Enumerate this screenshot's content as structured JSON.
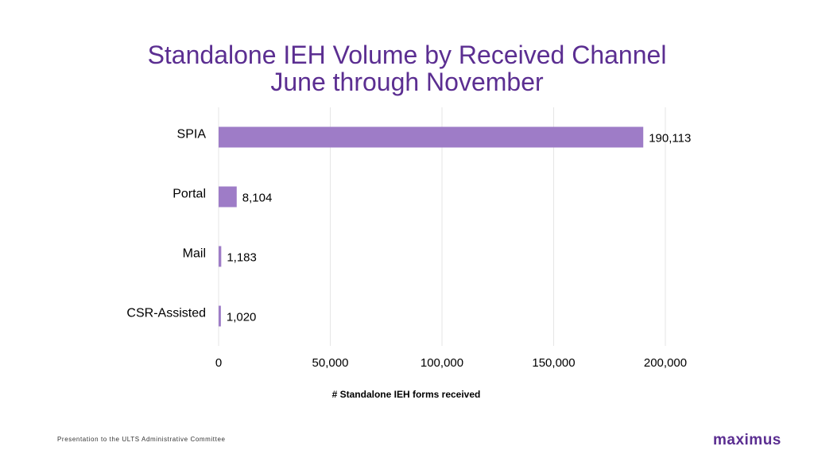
{
  "title": {
    "line1": "Standalone IEH Volume by Received Channel",
    "line2": "June through November"
  },
  "footer": "Presentation to the ULTS Administrative Committee",
  "logo": "maximus",
  "colors": {
    "bar": "#9e7cc7",
    "title": "#5b2e91",
    "grid": "#e6e6e6"
  },
  "chart_data": {
    "type": "bar",
    "orientation": "horizontal",
    "categories": [
      "SPIA",
      "Portal",
      "Mail",
      "CSR-Assisted"
    ],
    "values": [
      190113,
      8104,
      1183,
      1020
    ],
    "value_labels": [
      "190,113",
      "8,104",
      "1,183",
      "1,020"
    ],
    "xlabel": "# Standalone IEH forms received",
    "ylabel": "",
    "xlim": [
      0,
      200000
    ],
    "x_ticks": [
      0,
      50000,
      100000,
      150000,
      200000
    ],
    "x_tick_labels": [
      "0",
      "50,000",
      "100,000",
      "150,000",
      "200,000"
    ],
    "grid": true,
    "legend": "none"
  }
}
